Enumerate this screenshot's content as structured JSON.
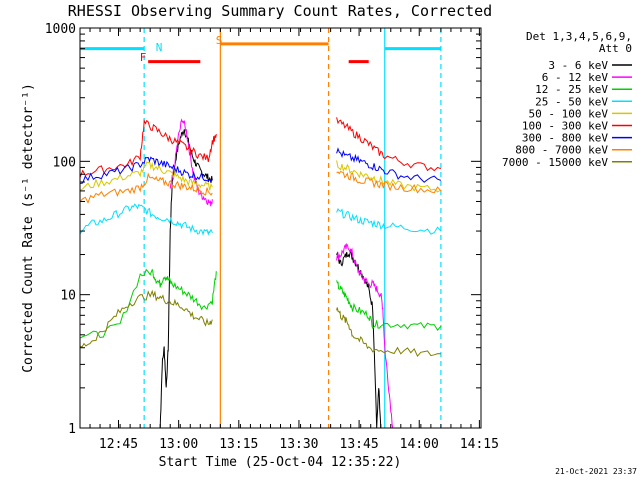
{
  "chart_data": {
    "type": "line",
    "title": "RHESSI Observing Summary Count Rates, Corrected",
    "xlabel": "Start Time (25-Oct-04 12:35:22)",
    "ylabel": "Corrected Count Rate (s⁻¹ detector⁻¹)",
    "y_scale": "log",
    "ylim": [
      1,
      1000
    ],
    "xlim_minutes": [
      0,
      100
    ],
    "x_ticks": [
      {
        "t": 9.6,
        "label": "12:45"
      },
      {
        "t": 24.6,
        "label": "13:00"
      },
      {
        "t": 39.6,
        "label": "13:15"
      },
      {
        "t": 54.6,
        "label": "13:30"
      },
      {
        "t": 69.6,
        "label": "13:45"
      },
      {
        "t": 84.6,
        "label": "14:00"
      },
      {
        "t": 99.6,
        "label": "14:15"
      }
    ],
    "y_ticks": [
      {
        "v": 1,
        "label": "1"
      },
      {
        "v": 10,
        "label": "10"
      },
      {
        "v": 100,
        "label": "100"
      },
      {
        "v": 1000,
        "label": "1000"
      }
    ],
    "legend_header": [
      "Det 1,3,4,5,6,9,",
      "Att 0"
    ],
    "legend_position": "right",
    "grid": false,
    "series": [
      {
        "name": "3 - 6 keV",
        "color": "#000000",
        "segments": [
          [
            [
              20,
              1
            ],
            [
              20.5,
              3
            ],
            [
              21,
              4
            ],
            [
              21.5,
              2
            ],
            [
              22,
              4
            ],
            [
              22.5,
              30
            ],
            [
              23,
              70
            ],
            [
              24,
              110
            ],
            [
              25,
              150
            ],
            [
              26,
              175
            ],
            [
              27,
              140
            ],
            [
              28,
              110
            ],
            [
              29,
              95
            ],
            [
              30,
              85
            ],
            [
              31,
              80
            ],
            [
              32,
              75
            ],
            [
              33,
              72
            ]
          ],
          [
            [
              64,
              20
            ],
            [
              65,
              17
            ],
            [
              66,
              19
            ],
            [
              67,
              21
            ],
            [
              68,
              19
            ],
            [
              69,
              17
            ],
            [
              70,
              15
            ],
            [
              71,
              13
            ],
            [
              72,
              11
            ],
            [
              73,
              8
            ],
            [
              73.5,
              3
            ],
            [
              74,
              1
            ],
            [
              74.5,
              2
            ],
            [
              75,
              1
            ]
          ]
        ]
      },
      {
        "name": "6 - 12 keV",
        "color": "#ff00ff",
        "segments": [
          [
            [
              22.5,
              60
            ],
            [
              23.5,
              90
            ],
            [
              24.5,
              150
            ],
            [
              25.5,
              210
            ],
            [
              26.5,
              170
            ],
            [
              27.5,
              110
            ],
            [
              28.5,
              75
            ],
            [
              29.5,
              60
            ],
            [
              30.5,
              55
            ],
            [
              31.5,
              52
            ],
            [
              32.5,
              48
            ],
            [
              33,
              52
            ]
          ],
          [
            [
              64,
              19
            ],
            [
              65,
              20
            ],
            [
              66,
              22
            ],
            [
              67,
              23
            ],
            [
              68,
              20
            ],
            [
              69,
              16
            ],
            [
              70,
              14
            ],
            [
              71,
              13
            ],
            [
              72,
              12
            ],
            [
              73,
              12
            ],
            [
              74,
              11
            ],
            [
              75,
              10
            ],
            [
              75.5,
              8
            ],
            [
              76,
              4
            ],
            [
              77,
              2
            ],
            [
              78,
              1
            ]
          ]
        ]
      },
      {
        "name": "12 - 25 keV",
        "color": "#00d000",
        "segments": [
          [
            [
              0,
              5
            ],
            [
              5,
              5
            ],
            [
              10,
              6
            ],
            [
              15,
              14
            ],
            [
              18,
              15
            ],
            [
              19,
              13
            ],
            [
              20,
              12
            ],
            [
              21,
              14
            ],
            [
              22,
              13
            ],
            [
              23,
              12
            ],
            [
              25,
              11
            ],
            [
              27,
              10
            ],
            [
              29,
              9
            ],
            [
              31,
              8
            ],
            [
              33,
              9
            ],
            [
              34,
              15
            ]
          ],
          [
            [
              64,
              12
            ],
            [
              65,
              11
            ],
            [
              66,
              10
            ],
            [
              67,
              9
            ],
            [
              68,
              8
            ],
            [
              70,
              7.5
            ],
            [
              72,
              7
            ],
            [
              73,
              6
            ],
            [
              75,
              6
            ],
            [
              80,
              6
            ],
            [
              85,
              5.8
            ],
            [
              90,
              5.8
            ]
          ]
        ]
      },
      {
        "name": "25 - 50 keV",
        "color": "#00e0ff",
        "segments": [
          [
            [
              0,
              30
            ],
            [
              3,
              34
            ],
            [
              6,
              36
            ],
            [
              9,
              40
            ],
            [
              12,
              44
            ],
            [
              14,
              46
            ],
            [
              16,
              44
            ],
            [
              18,
              40
            ],
            [
              20,
              38
            ],
            [
              22,
              37
            ],
            [
              24,
              35
            ],
            [
              26,
              33
            ],
            [
              28,
              31
            ],
            [
              30,
              30
            ],
            [
              32,
              29
            ],
            [
              33,
              29
            ]
          ],
          [
            [
              64,
              42
            ],
            [
              66,
              40
            ],
            [
              68,
              38
            ],
            [
              70,
              36
            ],
            [
              72,
              35
            ],
            [
              74,
              34
            ],
            [
              76,
              33
            ],
            [
              80,
              32
            ],
            [
              85,
              31
            ],
            [
              90,
              30
            ]
          ]
        ]
      },
      {
        "name": "50 - 100 keV",
        "color": "#d8c800",
        "segments": [
          [
            [
              0,
              62
            ],
            [
              4,
              68
            ],
            [
              8,
              72
            ],
            [
              12,
              78
            ],
            [
              15,
              82
            ],
            [
              17,
              95
            ],
            [
              19,
              90
            ],
            [
              21,
              85
            ],
            [
              23,
              80
            ],
            [
              25,
              75
            ],
            [
              27,
              70
            ],
            [
              29,
              68
            ],
            [
              31,
              66
            ],
            [
              33,
              64
            ]
          ],
          [
            [
              64,
              95
            ],
            [
              66,
              90
            ],
            [
              68,
              85
            ],
            [
              70,
              80
            ],
            [
              72,
              78
            ],
            [
              74,
              74
            ],
            [
              76,
              70
            ],
            [
              80,
              66
            ],
            [
              85,
              63
            ],
            [
              90,
              61
            ]
          ]
        ]
      },
      {
        "name": "100 - 300 keV",
        "color": "#ff0000",
        "segments": [
          [
            [
              0,
              80
            ],
            [
              4,
              85
            ],
            [
              8,
              90
            ],
            [
              12,
              95
            ],
            [
              15,
              110
            ],
            [
              16,
              195
            ],
            [
              18,
              180
            ],
            [
              20,
              165
            ],
            [
              22,
              150
            ],
            [
              24,
              140
            ],
            [
              26,
              130
            ],
            [
              28,
              120
            ],
            [
              30,
              110
            ],
            [
              32,
              105
            ],
            [
              33,
              140
            ],
            [
              34,
              160
            ]
          ],
          [
            [
              64,
              200
            ],
            [
              66,
              185
            ],
            [
              68,
              165
            ],
            [
              70,
              150
            ],
            [
              72,
              135
            ],
            [
              74,
              120
            ],
            [
              76,
              110
            ],
            [
              80,
              100
            ],
            [
              85,
              92
            ],
            [
              90,
              88
            ]
          ]
        ]
      },
      {
        "name": "300 - 800 keV",
        "color": "#0000ff",
        "segments": [
          [
            [
              0,
              72
            ],
            [
              4,
              78
            ],
            [
              8,
              82
            ],
            [
              12,
              88
            ],
            [
              15,
              95
            ],
            [
              17,
              105
            ],
            [
              19,
              100
            ],
            [
              21,
              95
            ],
            [
              23,
              90
            ],
            [
              25,
              85
            ],
            [
              27,
              80
            ],
            [
              29,
              78
            ],
            [
              31,
              76
            ],
            [
              33,
              74
            ]
          ],
          [
            [
              64,
              120
            ],
            [
              66,
              110
            ],
            [
              68,
              105
            ],
            [
              70,
              100
            ],
            [
              72,
              95
            ],
            [
              74,
              90
            ],
            [
              76,
              85
            ],
            [
              80,
              78
            ],
            [
              85,
              74
            ],
            [
              90,
              72
            ]
          ]
        ]
      },
      {
        "name": "800 - 7000 keV",
        "color": "#ff8000",
        "segments": [
          [
            [
              0,
              50
            ],
            [
              4,
              55
            ],
            [
              8,
              58
            ],
            [
              12,
              60
            ],
            [
              15,
              64
            ],
            [
              17,
              75
            ],
            [
              19,
              72
            ],
            [
              21,
              70
            ],
            [
              23,
              68
            ],
            [
              25,
              66
            ],
            [
              27,
              64
            ],
            [
              29,
              62
            ],
            [
              31,
              60
            ],
            [
              33,
              58
            ]
          ],
          [
            [
              64,
              85
            ],
            [
              66,
              80
            ],
            [
              68,
              76
            ],
            [
              70,
              72
            ],
            [
              72,
              70
            ],
            [
              74,
              68
            ],
            [
              76,
              66
            ],
            [
              80,
              64
            ],
            [
              85,
              62
            ],
            [
              90,
              60
            ]
          ]
        ]
      },
      {
        "name": "7000 - 15000 keV",
        "color": "#808000",
        "segments": [
          [
            [
              0,
              4
            ],
            [
              3,
              4.5
            ],
            [
              6,
              5.5
            ],
            [
              9,
              7
            ],
            [
              12,
              8.5
            ],
            [
              15,
              9.5
            ],
            [
              18,
              10
            ],
            [
              20,
              9.5
            ],
            [
              22,
              9
            ],
            [
              24,
              8.5
            ],
            [
              26,
              8
            ],
            [
              28,
              7
            ],
            [
              30,
              6.5
            ],
            [
              32,
              6
            ],
            [
              33,
              6.5
            ]
          ],
          [
            [
              64,
              8
            ],
            [
              65,
              7
            ],
            [
              66,
              6.5
            ],
            [
              67,
              6
            ],
            [
              68,
              5
            ],
            [
              70,
              4.5
            ],
            [
              72,
              4
            ],
            [
              75,
              3.8
            ],
            [
              80,
              3.8
            ],
            [
              85,
              3.6
            ],
            [
              90,
              3.6
            ]
          ]
        ]
      }
    ],
    "annotations": {
      "flag_markers": [
        {
          "label": "N",
          "color": "#00e0ff"
        },
        {
          "label": "F",
          "color": "#ff0000"
        },
        {
          "label": "S",
          "color": "#ff8000"
        }
      ],
      "flag_bars": [
        {
          "color": "#00e0ff",
          "level": 700,
          "from": 0,
          "to": 16
        },
        {
          "color": "#ff0000",
          "level": 560,
          "from": 17,
          "to": 30
        },
        {
          "color": "#ff8000",
          "level": 760,
          "from": 35,
          "to": 62
        },
        {
          "color": "#ff0000",
          "level": 560,
          "from": 67,
          "to": 72
        },
        {
          "color": "#00e0ff",
          "level": 700,
          "from": 76,
          "to": 90
        }
      ],
      "vertical_lines": [
        {
          "t": 16,
          "color": "#00e0ff",
          "style": "dashed"
        },
        {
          "t": 35,
          "color": "#ff8000",
          "style": "solid"
        },
        {
          "t": 62,
          "color": "#ff8000",
          "style": "dashed"
        },
        {
          "t": 76,
          "color": "#00e0ff",
          "style": "solid"
        },
        {
          "t": 90,
          "color": "#00e0ff",
          "style": "dashed"
        }
      ]
    },
    "footer_date": "21-Oct-2021 23:37"
  }
}
